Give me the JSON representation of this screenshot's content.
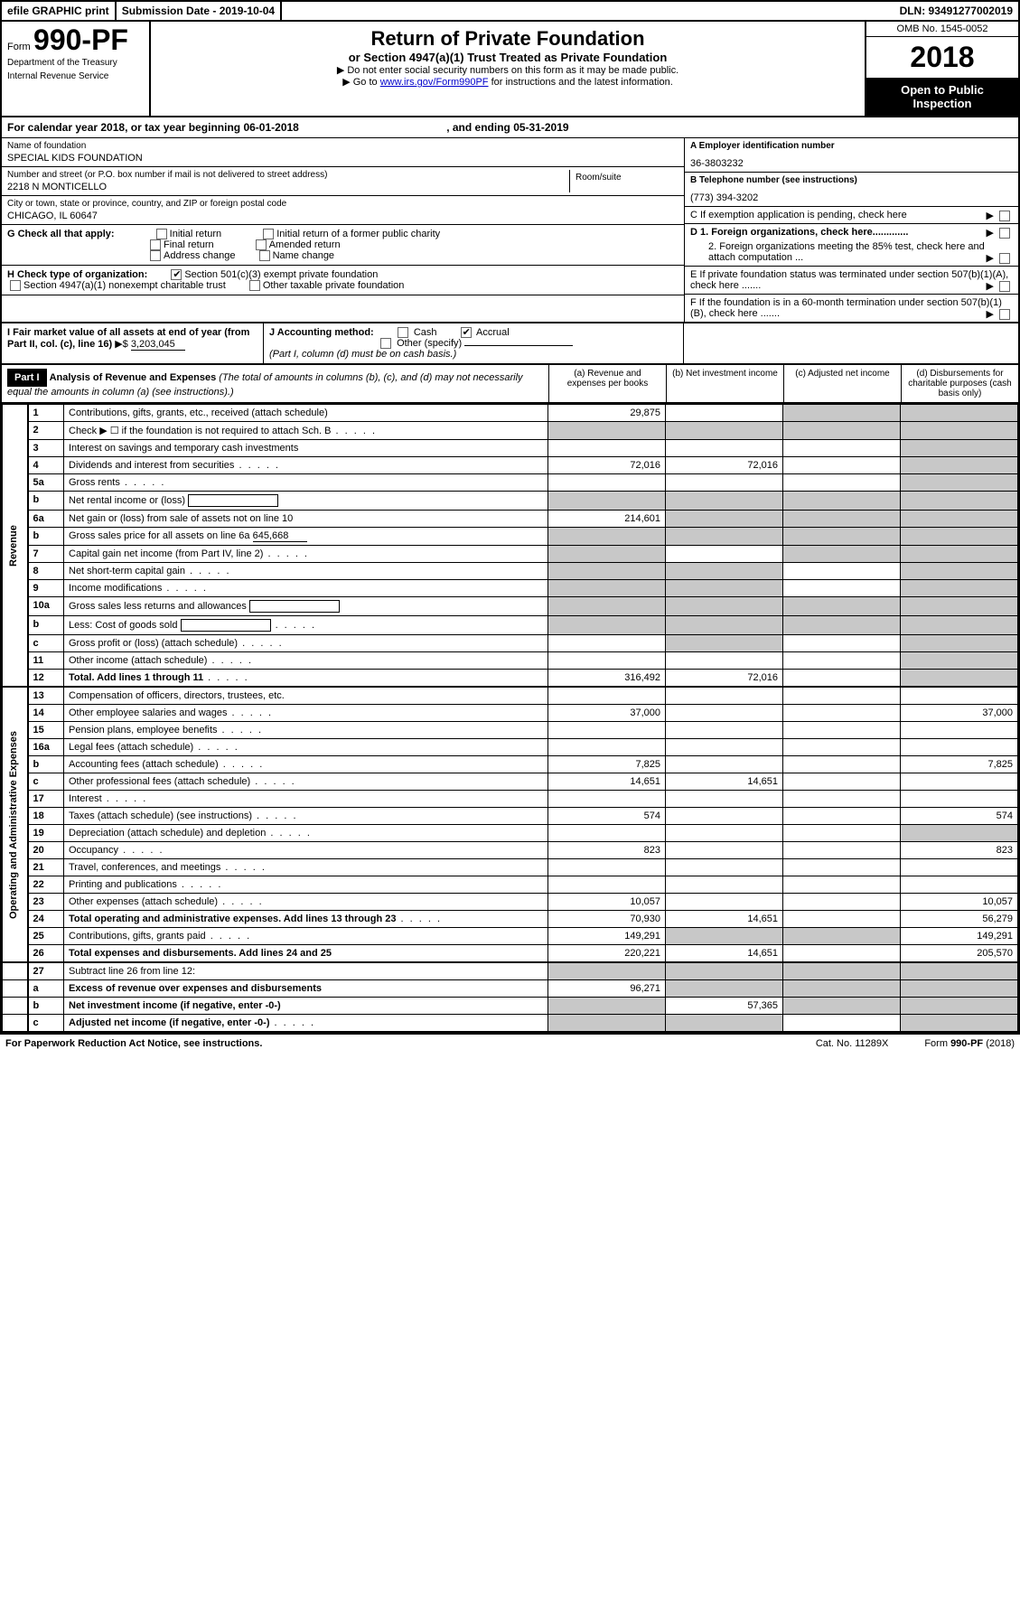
{
  "top_bar": {
    "efile": "efile GRAPHIC print",
    "submission": "Submission Date - 2019-10-04",
    "dln": "DLN: 93491277002019"
  },
  "header": {
    "form_prefix": "Form",
    "form_number": "990-PF",
    "dept1": "Department of the Treasury",
    "dept2": "Internal Revenue Service",
    "title": "Return of Private Foundation",
    "subtitle": "or Section 4947(a)(1) Trust Treated as Private Foundation",
    "instr1": "▶ Do not enter social security numbers on this form as it may be made public.",
    "instr2_pre": "▶ Go to ",
    "instr2_link": "www.irs.gov/Form990PF",
    "instr2_post": " for instructions and the latest information.",
    "omb": "OMB No. 1545-0052",
    "year": "2018",
    "open": "Open to Public Inspection"
  },
  "calendar_year": {
    "text_pre": "For calendar year 2018, or tax year beginning ",
    "begin": "06-01-2018",
    "text_mid": " , and ending ",
    "end": "05-31-2019"
  },
  "entity": {
    "name_label": "Name of foundation",
    "name": "SPECIAL KIDS FOUNDATION",
    "ein_label": "A Employer identification number",
    "ein": "36-3803232",
    "street_label": "Number and street (or P.O. box number if mail is not delivered to street address)",
    "street": "2218 N MONTICELLO",
    "room_label": "Room/suite",
    "phone_label": "B Telephone number (see instructions)",
    "phone": "(773) 394-3202",
    "city_label": "City or town, state or province, country, and ZIP or foreign postal code",
    "city": "CHICAGO, IL  60647",
    "c_label": "C If exemption application is pending, check here"
  },
  "g_section": {
    "label": "G Check all that apply:",
    "opts": [
      "Initial return",
      "Initial return of a former public charity",
      "Final return",
      "Amended return",
      "Address change",
      "Name change"
    ]
  },
  "d_section": {
    "d1": "D 1. Foreign organizations, check here.............",
    "d2": "2. Foreign organizations meeting the 85% test, check here and attach computation ...",
    "e": "E  If private foundation status was terminated under section 507(b)(1)(A), check here .......",
    "f": "F  If the foundation is in a 60-month termination under section 507(b)(1)(B), check here ......."
  },
  "h_section": {
    "label": "H Check type of organization:",
    "opt1": "Section 501(c)(3) exempt private foundation",
    "opt2": "Section 4947(a)(1) nonexempt charitable trust",
    "opt3": "Other taxable private foundation"
  },
  "i_section": {
    "label": "I Fair market value of all assets at end of year (from Part II, col. (c), line 16)",
    "value": "3,203,045"
  },
  "j_section": {
    "label": "J Accounting method:",
    "cash": "Cash",
    "accrual": "Accrual",
    "other": "Other (specify)",
    "note": "(Part I, column (d) must be on cash basis.)"
  },
  "part1": {
    "header": "Part I",
    "title": "Analysis of Revenue and Expenses",
    "note": "(The total of amounts in columns (b), (c), and (d) may not necessarily equal the amounts in column (a) (see instructions).)",
    "col_a": "(a)   Revenue and expenses per books",
    "col_b": "(b)  Net investment income",
    "col_c": "(c)  Adjusted net income",
    "col_d": "(d)  Disbursements for charitable purposes (cash basis only)"
  },
  "side_labels": {
    "revenue": "Revenue",
    "expenses": "Operating and Administrative Expenses"
  },
  "lines": [
    {
      "no": "1",
      "desc": "Contributions, gifts, grants, etc., received (attach schedule)",
      "a": "29,875",
      "b": "",
      "c": "shaded",
      "d": "shaded"
    },
    {
      "no": "2",
      "desc": "Check ▶ ☐ if the foundation is not required to attach Sch. B",
      "a": "shaded",
      "b": "shaded",
      "c": "shaded",
      "d": "shaded",
      "dots": true
    },
    {
      "no": "3",
      "desc": "Interest on savings and temporary cash investments",
      "a": "",
      "b": "",
      "c": "",
      "d": "shaded"
    },
    {
      "no": "4",
      "desc": "Dividends and interest from securities",
      "a": "72,016",
      "b": "72,016",
      "c": "",
      "d": "shaded",
      "dots": true
    },
    {
      "no": "5a",
      "desc": "Gross rents",
      "a": "",
      "b": "",
      "c": "",
      "d": "shaded",
      "dots": true
    },
    {
      "no": "b",
      "desc": "Net rental income or (loss)",
      "a": "shaded",
      "b": "shaded",
      "c": "shaded",
      "d": "shaded",
      "inline": true
    },
    {
      "no": "6a",
      "desc": "Net gain or (loss) from sale of assets not on line 10",
      "a": "214,601",
      "b": "shaded",
      "c": "shaded",
      "d": "shaded"
    },
    {
      "no": "b",
      "desc": "Gross sales price for all assets on line 6a",
      "a": "shaded",
      "b": "shaded",
      "c": "shaded",
      "d": "shaded",
      "inline_val": "645,668"
    },
    {
      "no": "7",
      "desc": "Capital gain net income (from Part IV, line 2)",
      "a": "shaded",
      "b": "",
      "c": "shaded",
      "d": "shaded",
      "dots": true
    },
    {
      "no": "8",
      "desc": "Net short-term capital gain",
      "a": "shaded",
      "b": "shaded",
      "c": "",
      "d": "shaded",
      "dots": true
    },
    {
      "no": "9",
      "desc": "Income modifications",
      "a": "shaded",
      "b": "shaded",
      "c": "",
      "d": "shaded",
      "dots": true
    },
    {
      "no": "10a",
      "desc": "Gross sales less returns and allowances",
      "a": "shaded",
      "b": "shaded",
      "c": "shaded",
      "d": "shaded",
      "inline": true
    },
    {
      "no": "b",
      "desc": "Less: Cost of goods sold",
      "a": "shaded",
      "b": "shaded",
      "c": "shaded",
      "d": "shaded",
      "inline": true,
      "dots": true
    },
    {
      "no": "c",
      "desc": "Gross profit or (loss) (attach schedule)",
      "a": "",
      "b": "shaded",
      "c": "",
      "d": "shaded",
      "dots": true
    },
    {
      "no": "11",
      "desc": "Other income (attach schedule)",
      "a": "",
      "b": "",
      "c": "",
      "d": "shaded",
      "dots": true
    },
    {
      "no": "12",
      "desc": "Total. Add lines 1 through 11",
      "a": "316,492",
      "b": "72,016",
      "c": "",
      "d": "shaded",
      "bold": true,
      "dots": true
    }
  ],
  "exp_lines": [
    {
      "no": "13",
      "desc": "Compensation of officers, directors, trustees, etc.",
      "a": "",
      "b": "",
      "c": "",
      "d": ""
    },
    {
      "no": "14",
      "desc": "Other employee salaries and wages",
      "a": "37,000",
      "b": "",
      "c": "",
      "d": "37,000",
      "dots": true
    },
    {
      "no": "15",
      "desc": "Pension plans, employee benefits",
      "a": "",
      "b": "",
      "c": "",
      "d": "",
      "dots": true
    },
    {
      "no": "16a",
      "desc": "Legal fees (attach schedule)",
      "a": "",
      "b": "",
      "c": "",
      "d": "",
      "dots": true
    },
    {
      "no": "b",
      "desc": "Accounting fees (attach schedule)",
      "a": "7,825",
      "b": "",
      "c": "",
      "d": "7,825",
      "dots": true
    },
    {
      "no": "c",
      "desc": "Other professional fees (attach schedule)",
      "a": "14,651",
      "b": "14,651",
      "c": "",
      "d": "",
      "dots": true
    },
    {
      "no": "17",
      "desc": "Interest",
      "a": "",
      "b": "",
      "c": "",
      "d": "",
      "dots": true
    },
    {
      "no": "18",
      "desc": "Taxes (attach schedule) (see instructions)",
      "a": "574",
      "b": "",
      "c": "",
      "d": "574",
      "dots": true
    },
    {
      "no": "19",
      "desc": "Depreciation (attach schedule) and depletion",
      "a": "",
      "b": "",
      "c": "",
      "d": "shaded",
      "dots": true
    },
    {
      "no": "20",
      "desc": "Occupancy",
      "a": "823",
      "b": "",
      "c": "",
      "d": "823",
      "dots": true
    },
    {
      "no": "21",
      "desc": "Travel, conferences, and meetings",
      "a": "",
      "b": "",
      "c": "",
      "d": "",
      "dots": true
    },
    {
      "no": "22",
      "desc": "Printing and publications",
      "a": "",
      "b": "",
      "c": "",
      "d": "",
      "dots": true
    },
    {
      "no": "23",
      "desc": "Other expenses (attach schedule)",
      "a": "10,057",
      "b": "",
      "c": "",
      "d": "10,057",
      "dots": true
    },
    {
      "no": "24",
      "desc": "Total operating and administrative expenses. Add lines 13 through 23",
      "a": "70,930",
      "b": "14,651",
      "c": "",
      "d": "56,279",
      "bold": true,
      "dots": true
    },
    {
      "no": "25",
      "desc": "Contributions, gifts, grants paid",
      "a": "149,291",
      "b": "shaded",
      "c": "shaded",
      "d": "149,291",
      "dots": true
    },
    {
      "no": "26",
      "desc": "Total expenses and disbursements. Add lines 24 and 25",
      "a": "220,221",
      "b": "14,651",
      "c": "",
      "d": "205,570",
      "bold": true
    }
  ],
  "bottom_lines": [
    {
      "no": "27",
      "desc": "Subtract line 26 from line 12:",
      "a": "shaded",
      "b": "shaded",
      "c": "shaded",
      "d": "shaded"
    },
    {
      "no": "a",
      "desc": "Excess of revenue over expenses and disbursements",
      "a": "96,271",
      "b": "shaded",
      "c": "shaded",
      "d": "shaded",
      "bold": true
    },
    {
      "no": "b",
      "desc": "Net investment income (if negative, enter -0-)",
      "a": "shaded",
      "b": "57,365",
      "c": "shaded",
      "d": "shaded",
      "bold": true
    },
    {
      "no": "c",
      "desc": "Adjusted net income (if negative, enter -0-)",
      "a": "shaded",
      "b": "shaded",
      "c": "",
      "d": "shaded",
      "bold": true,
      "dots": true
    }
  ],
  "footer": {
    "left": "For Paperwork Reduction Act Notice, see instructions.",
    "mid": "Cat. No. 11289X",
    "right": "Form 990-PF (2018)"
  }
}
